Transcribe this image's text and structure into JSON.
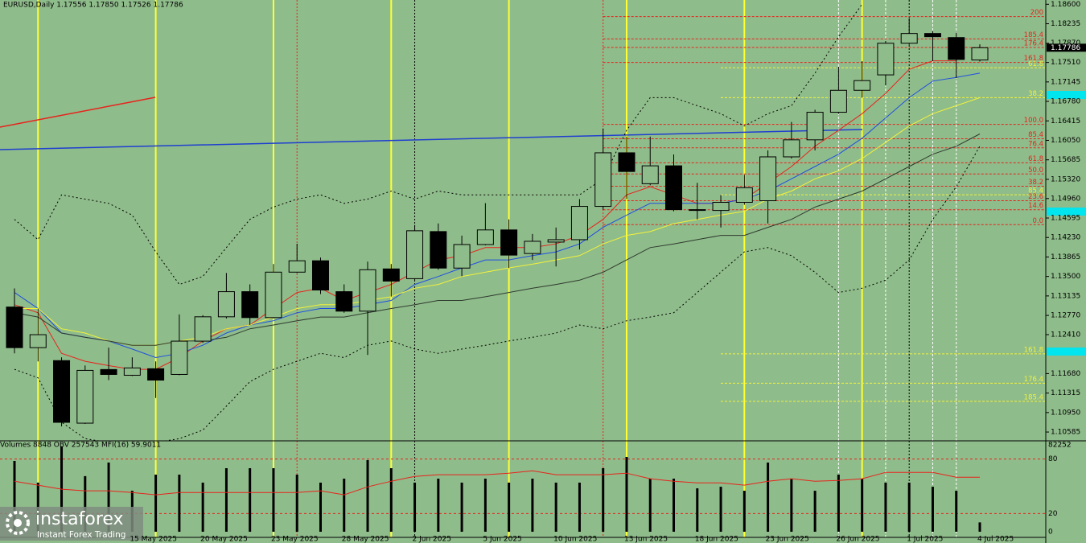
{
  "header": "EURUSD,Daily  1.17556 1.17850 1.17526 1.17786",
  "chart_data": {
    "type": "candlestick",
    "categories": [
      null,
      null,
      null,
      null,
      null,
      "15 May 2025",
      null,
      null,
      "20 May 2025",
      null,
      null,
      "23 May 2025",
      null,
      null,
      "28 May 2025",
      null,
      null,
      "2 Jun 2025",
      null,
      null,
      "5 Jun 2025",
      null,
      null,
      "10 Jun 2025",
      null,
      null,
      "13 Jun 2025",
      null,
      null,
      "18 Jun 2025",
      null,
      null,
      "23 Jun 2025",
      null,
      null,
      "26 Jun 2025",
      null,
      null,
      "1 Jul 2025",
      null,
      null,
      "4 Jul 2025"
    ],
    "open": [
      1.12927,
      1.12166,
      1.11923,
      1.10751,
      1.11756,
      1.11649,
      1.11771,
      1.11664,
      1.12288,
      1.12744,
      1.13215,
      1.12729,
      1.13581,
      1.13794,
      1.13215,
      1.1285,
      1.13641,
      1.13459,
      1.14341,
      1.13657,
      1.14098,
      1.14372,
      1.1393,
      1.14144,
      1.14189,
      1.14813,
      1.15817,
      1.15238,
      1.15573,
      1.14752,
      1.14737,
      1.14889,
      1.14919,
      1.15741,
      1.1606,
      1.16577,
      1.16988,
      1.17277,
      1.1787,
      1.18052,
      1.17976,
      1.17556
    ],
    "high": [
      1.13276,
      1.12896,
      1.11984,
      1.11832,
      1.12166,
      1.11984,
      1.11908,
      1.12789,
      1.12774,
      1.13565,
      1.13352,
      1.13733,
      1.14113,
      1.13855,
      1.13352,
      1.13778,
      1.13733,
      1.14463,
      1.14493,
      1.14265,
      1.14874,
      1.14569,
      1.14296,
      1.14417,
      1.1495,
      1.16273,
      1.16121,
      1.16121,
      1.15786,
      1.15254,
      1.15025,
      1.15406,
      1.15862,
      1.16395,
      1.16623,
      1.17429,
      1.17535,
      1.17916,
      1.18341,
      1.18098,
      1.18068,
      1.1785
    ],
    "low": [
      1.1206,
      1.11908,
      1.10691,
      1.10736,
      1.11558,
      1.11634,
      1.11223,
      1.11649,
      1.12257,
      1.12713,
      1.12592,
      1.12713,
      1.13565,
      1.1317,
      1.1282,
      1.12029,
      1.13124,
      1.13428,
      1.13626,
      1.13505,
      1.14083,
      1.13657,
      1.13809,
      1.13687,
      1.14006,
      1.14752,
      1.1495,
      1.15208,
      1.14721,
      1.14569,
      1.14417,
      1.14843,
      1.14493,
      1.1571,
      1.15862,
      1.16547,
      1.16851,
      1.17079,
      1.1784,
      1.17535,
      1.17216,
      1.17526
    ],
    "close": [
      1.12166,
      1.12409,
      1.10767,
      1.1174,
      1.11664,
      1.11786,
      1.11558,
      1.12288,
      1.12744,
      1.13215,
      1.12729,
      1.13581,
      1.13794,
      1.13246,
      1.1285,
      1.13626,
      1.13413,
      1.14356,
      1.13657,
      1.14098,
      1.14372,
      1.139,
      1.14159,
      1.14189,
      1.14813,
      1.15817,
      1.15467,
      1.15573,
      1.14752,
      1.14737,
      1.14889,
      1.15162,
      1.15741,
      1.1606,
      1.16577,
      1.16988,
      1.1717,
      1.1787,
      1.18052,
      1.17992,
      1.17566,
      1.17786
    ],
    "bull_color": "#8fbc8b",
    "bear_color": "#000000",
    "ylim": [
      1.1042,
      1.1868
    ],
    "yticks": [
      {
        "value": 1.186,
        "label": "1.18600"
      },
      {
        "value": 1.18235,
        "label": "1.18235"
      },
      {
        "value": 1.1787,
        "label": "1.17870"
      },
      {
        "value": 1.1751,
        "label": "1.17510"
      },
      {
        "value": 1.17145,
        "label": "1.17145"
      },
      {
        "value": 1.1678,
        "label": "1.16780"
      },
      {
        "value": 1.16415,
        "label": "1.16415"
      },
      {
        "value": 1.1605,
        "label": "1.16050"
      },
      {
        "value": 1.15685,
        "label": "1.15685"
      },
      {
        "value": 1.1532,
        "label": "1.15320"
      },
      {
        "value": 1.1496,
        "label": "1.14960"
      },
      {
        "value": 1.14595,
        "label": "1.14595"
      },
      {
        "value": 1.1423,
        "label": "1.14230"
      },
      {
        "value": 1.13865,
        "label": "1.13865"
      },
      {
        "value": 1.135,
        "label": "1.13500"
      },
      {
        "value": 1.13135,
        "label": "1.13135"
      },
      {
        "value": 1.1277,
        "label": "1.12770"
      },
      {
        "value": 1.1241,
        "label": "1.12410"
      },
      {
        "value": 1.1168,
        "label": "1.11680"
      },
      {
        "value": 1.11315,
        "label": "1.11315"
      },
      {
        "value": 1.1095,
        "label": "1.10950"
      },
      {
        "value": 1.10585,
        "label": "1.10585"
      }
    ],
    "last_price_label": "1.17786",
    "lines": [
      {
        "color": "#e8231c",
        "dash": "",
        "values": [
          1.1297,
          1.1282,
          1.1206,
          1.1191,
          1.1183,
          1.1176,
          1.1176,
          1.1198,
          1.1229,
          1.1252,
          1.1259,
          1.129,
          1.132,
          1.1328,
          1.1305,
          1.132,
          1.1335,
          1.1358,
          1.1381,
          1.1389,
          1.1404,
          1.1404,
          1.1404,
          1.1411,
          1.1427,
          1.1457,
          1.1503,
          1.1518,
          1.1503,
          1.1487,
          1.1487,
          1.1495,
          1.1525,
          1.1556,
          1.1594,
          1.1624,
          1.1655,
          1.1693,
          1.1738,
          1.1754,
          1.1754,
          null
        ]
      },
      {
        "color": "#1f4fe0",
        "dash": "",
        "values": [
          1.132,
          1.129,
          1.1244,
          1.1236,
          1.1229,
          1.1214,
          1.1198,
          1.1206,
          1.1221,
          1.1244,
          1.1259,
          1.1267,
          1.1282,
          1.129,
          1.129,
          1.1297,
          1.1305,
          1.1335,
          1.135,
          1.1366,
          1.1381,
          1.1381,
          1.1389,
          1.1396,
          1.1411,
          1.1442,
          1.1465,
          1.1487,
          1.1487,
          1.1487,
          1.1487,
          1.1495,
          1.151,
          1.1533,
          1.1556,
          1.1579,
          1.1609,
          1.1647,
          1.1685,
          1.1716,
          1.1723,
          1.1731
        ]
      },
      {
        "color": "#f2f23a",
        "dash": "",
        "values": [
          1.129,
          1.129,
          1.1252,
          1.1244,
          1.1229,
          1.1221,
          1.1221,
          1.1229,
          1.1236,
          1.1252,
          1.1259,
          1.1274,
          1.129,
          1.1297,
          1.1297,
          1.1305,
          1.1312,
          1.1328,
          1.1335,
          1.135,
          1.1358,
          1.1366,
          1.1373,
          1.1381,
          1.1389,
          1.1411,
          1.1427,
          1.1434,
          1.1449,
          1.1457,
          1.1465,
          1.1472,
          1.1495,
          1.151,
          1.1533,
          1.1548,
          1.1571,
          1.1601,
          1.1632,
          1.1655,
          1.167,
          1.1685
        ]
      },
      {
        "color": "#2e3a2e",
        "dash": "",
        "values": [
          1.1282,
          1.1274,
          1.1244,
          1.1236,
          1.1229,
          1.1221,
          1.1221,
          1.1229,
          1.1229,
          1.1236,
          1.1252,
          1.1259,
          1.1267,
          1.1274,
          1.1274,
          1.1282,
          1.129,
          1.1297,
          1.1305,
          1.1305,
          1.1312,
          1.132,
          1.1328,
          1.1335,
          1.1343,
          1.1358,
          1.1381,
          1.1404,
          1.1411,
          1.1419,
          1.1427,
          1.1427,
          1.1442,
          1.1457,
          1.148,
          1.1495,
          1.151,
          1.1533,
          1.1556,
          1.1579,
          1.1594,
          1.1617
        ]
      },
      {
        "color": "#000000",
        "dash": "2 3",
        "values": [
          1.1457,
          1.1419,
          1.1503,
          1.1495,
          1.1487,
          1.1465,
          1.1396,
          1.1335,
          1.135,
          1.1404,
          1.1457,
          1.148,
          1.1495,
          1.1503,
          1.1487,
          1.1495,
          1.151,
          1.1495,
          1.151,
          1.1503,
          1.1503,
          1.1503,
          1.1503,
          1.1503,
          1.1503,
          1.1533,
          1.1624,
          1.1685,
          1.1685,
          1.167,
          1.1655,
          1.1632,
          1.1655,
          1.167,
          1.1731,
          1.1799,
          1.186,
          null,
          null,
          null,
          null,
          null
        ]
      },
      {
        "color": "#000000",
        "dash": "2 3",
        "values": [
          1.1176,
          1.116,
          1.1077,
          1.1046,
          1.1039,
          1.1031,
          1.1039,
          1.1046,
          1.1062,
          1.1107,
          1.1153,
          1.1176,
          1.1191,
          1.1206,
          1.1198,
          1.1221,
          1.1229,
          1.1214,
          1.1206,
          1.1214,
          1.1221,
          1.1229,
          1.1236,
          1.1244,
          1.1259,
          1.1252,
          1.1267,
          1.1274,
          1.1282,
          1.132,
          1.1358,
          1.1396,
          1.1404,
          1.1389,
          1.1358,
          1.132,
          1.1328,
          1.1343,
          1.1381,
          1.1457,
          1.1518,
          1.1594
        ]
      }
    ],
    "fibo": [
      {
        "label": "200",
        "value": 1.1837,
        "color": "#e8231c",
        "start": 25
      },
      {
        "label": "185.4",
        "value": 1.1795,
        "color": "#e8231c",
        "start": 25
      },
      {
        "label": "176.4",
        "value": 1.1779,
        "color": "#e8231c",
        "start": 25
      },
      {
        "label": "161.8",
        "value": 1.1751,
        "color": "#e8231c",
        "start": 25
      },
      {
        "label": "100.0",
        "value": 1.1635,
        "color": "#e8231c",
        "start": 25
      },
      {
        "label": "85.4",
        "value": 1.1608,
        "color": "#e8231c",
        "start": 25
      },
      {
        "label": "76.4",
        "value": 1.1591,
        "color": "#e8231c",
        "start": 25
      },
      {
        "label": "61.8",
        "value": 1.1563,
        "color": "#e8231c",
        "start": 25
      },
      {
        "label": "50.0",
        "value": 1.1542,
        "color": "#e8231c",
        "start": 25
      },
      {
        "label": "38.2",
        "value": 1.1519,
        "color": "#e8231c",
        "start": 25
      },
      {
        "label": "23.6",
        "value": 1.1492,
        "color": "#e8231c",
        "start": 25
      },
      {
        "label": "14.6",
        "value": 1.1475,
        "color": "#e8231c",
        "start": 25
      },
      {
        "label": "0.0",
        "value": 1.1447,
        "color": "#e8231c",
        "start": 25
      },
      {
        "label": "61.8",
        "value": 1.1741,
        "color": "#f2f23a",
        "start": 30
      },
      {
        "label": "38.2",
        "value": 1.1685,
        "color": "#f2f23a",
        "start": 30
      },
      {
        "label": "85.4",
        "value": 1.1503,
        "color": "#f2f23a",
        "start": 30
      },
      {
        "label": "161.8",
        "value": 1.1205,
        "color": "#f2f23a",
        "start": 30
      },
      {
        "label": "176.4",
        "value": 1.115,
        "color": "#f2f23a",
        "start": 30
      },
      {
        "label": "185.4",
        "value": 1.1116,
        "color": "#f2f23a",
        "start": 30
      }
    ],
    "volume_pane": {
      "header": "Volumes 8848  OBV 257543  MFI(16) 59.9011",
      "vol_top": 82252,
      "volumes": [
        67000,
        46500,
        80700,
        52600,
        65500,
        38800,
        54100,
        54100,
        46500,
        60200,
        60200,
        60200,
        54100,
        46500,
        50300,
        67800,
        60200,
        46500,
        50300,
        46500,
        50300,
        46500,
        50300,
        46500,
        46500,
        60200,
        70800,
        50300,
        50300,
        41100,
        42600,
        38800,
        65500,
        50300,
        38800,
        54100,
        50300,
        46500,
        46500,
        42600,
        38800,
        8848
      ],
      "mfi": [
        55.6,
        51.2,
        46.8,
        45.0,
        45.0,
        43.2,
        40.6,
        43.2,
        43.2,
        43.2,
        43.2,
        43.2,
        43.2,
        45.0,
        40.6,
        49.4,
        55.6,
        60.9,
        62.7,
        62.7,
        62.7,
        64.4,
        67.1,
        62.7,
        62.7,
        62.7,
        64.4,
        58.3,
        55.6,
        53.8,
        53.8,
        51.2,
        55.6,
        58.3,
        55.6,
        56.5,
        58.3,
        65.3,
        65.3,
        65.3,
        60.0,
        59.9011
      ],
      "ylim": [
        0,
        100
      ],
      "yticks": [
        0,
        20,
        80
      ]
    }
  },
  "logo": {
    "name": "instaforex",
    "tagline": "Instant Forex Trading"
  }
}
